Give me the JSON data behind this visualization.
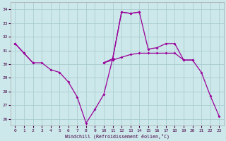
{
  "xlabel": "Windchill (Refroidissement éolien,°C)",
  "background_color": "#cce8ea",
  "grid_color": "#aacdd0",
  "line_color": "#990099",
  "x": [
    0,
    1,
    2,
    3,
    4,
    5,
    6,
    7,
    8,
    9,
    10,
    11,
    12,
    13,
    14,
    15,
    16,
    17,
    18,
    19,
    20,
    21,
    22,
    23
  ],
  "line1": [
    31.5,
    30.8,
    30.1,
    30.1,
    29.6,
    29.4,
    28.7,
    27.6,
    25.7,
    26.7,
    27.8,
    30.4,
    33.8,
    33.7,
    33.8,
    null,
    null,
    null,
    null,
    null,
    null,
    null,
    null,
    null
  ],
  "line2": [
    null,
    null,
    null,
    null,
    null,
    null,
    null,
    null,
    null,
    null,
    30.1,
    30.4,
    33.8,
    33.7,
    33.8,
    31.1,
    31.2,
    31.5,
    31.5,
    30.3,
    30.3,
    29.4,
    27.7,
    26.2
  ],
  "line3": [
    31.5,
    30.8,
    30.1,
    null,
    null,
    null,
    null,
    null,
    null,
    null,
    30.1,
    30.3,
    30.5,
    30.7,
    30.8,
    30.8,
    30.8,
    30.8,
    30.8,
    30.3,
    30.3,
    null,
    null,
    null
  ],
  "ylim": [
    25.5,
    34.5
  ],
  "xlim": [
    -0.5,
    23.5
  ],
  "yticks": [
    26,
    27,
    28,
    29,
    30,
    31,
    32,
    33,
    34
  ],
  "xticks": [
    0,
    1,
    2,
    3,
    4,
    5,
    6,
    7,
    8,
    9,
    10,
    11,
    12,
    13,
    14,
    15,
    16,
    17,
    18,
    19,
    20,
    21,
    22,
    23
  ]
}
